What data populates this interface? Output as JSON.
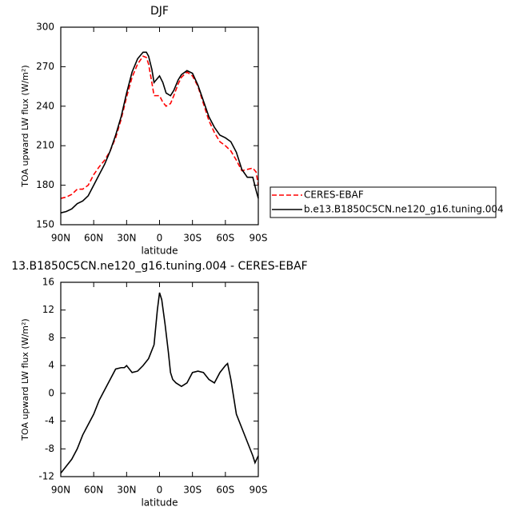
{
  "chart_data": [
    {
      "type": "line",
      "title": "DJF",
      "xlabel": "latitude",
      "ylabel": "TOA upward LW flux (W/m²)",
      "x": [
        90,
        85,
        80,
        75,
        70,
        65,
        60,
        55,
        50,
        45,
        40,
        35,
        30,
        25,
        20,
        15,
        12,
        10,
        7,
        5,
        2,
        0,
        -3,
        -6,
        -10,
        -13,
        -17,
        -20,
        -25,
        -30,
        -35,
        -40,
        -45,
        -50,
        -55,
        -60,
        -65,
        -70,
        -75,
        -80,
        -85,
        -88,
        -90
      ],
      "series": [
        {
          "name": "CERES-EBAF",
          "color": "#ff0000",
          "line_style": "dashed",
          "values": [
            170,
            171,
            173,
            177,
            177,
            180,
            188,
            194,
            199,
            206,
            216,
            230,
            247,
            262,
            272,
            278,
            277,
            272,
            258,
            248,
            248,
            248,
            243,
            240,
            242,
            248,
            257,
            262,
            266,
            263,
            255,
            242,
            229,
            220,
            213,
            210,
            206,
            199,
            191,
            192,
            193,
            190,
            180
          ]
        },
        {
          "name": "b.e13.B1850C5CN.ne120_g16.tuning.004",
          "color": "#000000",
          "line_style": "solid",
          "values": [
            159,
            160,
            162,
            166,
            168,
            172,
            180,
            188,
            196,
            206,
            218,
            232,
            250,
            266,
            276,
            281,
            281,
            278,
            268,
            258,
            261,
            263,
            258,
            250,
            248,
            252,
            260,
            264,
            267,
            265,
            256,
            244,
            232,
            224,
            218,
            216,
            213,
            205,
            192,
            186,
            186,
            176,
            170
          ]
        }
      ],
      "xlim": [
        90,
        -90
      ],
      "xticks": [
        {
          "value": 90,
          "label": "90N"
        },
        {
          "value": 60,
          "label": "60N"
        },
        {
          "value": 30,
          "label": "30N"
        },
        0,
        {
          "value": -30,
          "label": "30S"
        },
        {
          "value": -60,
          "label": "60S"
        },
        {
          "value": -90,
          "label": "90S"
        }
      ],
      "ylim": [
        150,
        300
      ],
      "yticks": [
        150,
        180,
        210,
        240,
        270,
        300
      ],
      "legend": "right"
    },
    {
      "type": "line",
      "title": "13.B1850C5CN.ne120_g16.tuning.004 - CERES-EBAF",
      "xlabel": "latitude",
      "ylabel": "TOA upward LW flux (W/m²)",
      "x": [
        90,
        85,
        80,
        75,
        70,
        65,
        60,
        55,
        50,
        45,
        40,
        35,
        32,
        30,
        25,
        20,
        15,
        10,
        5,
        2,
        0,
        -2,
        -5,
        -8,
        -10,
        -12,
        -15,
        -20,
        -25,
        -30,
        -35,
        -40,
        -45,
        -50,
        -55,
        -60,
        -62,
        -65,
        -70,
        -75,
        -80,
        -85,
        -87,
        -90
      ],
      "series": [
        {
          "color": "#000000",
          "line_style": "solid",
          "values": [
            -11.5,
            -10.5,
            -9.5,
            -8,
            -6,
            -4.5,
            -3,
            -1,
            0.5,
            2,
            3.5,
            3.7,
            3.7,
            4,
            3,
            3.2,
            4,
            5,
            7,
            12,
            14.5,
            13.5,
            10,
            6,
            3,
            2,
            1.5,
            1,
            1.5,
            3,
            3.2,
            3,
            2,
            1.5,
            3,
            4,
            4.3,
            2,
            -3,
            -5,
            -7,
            -9,
            -10,
            -9
          ]
        }
      ],
      "xlim": [
        90,
        -90
      ],
      "xticks": [
        {
          "value": 90,
          "label": "90N"
        },
        {
          "value": 60,
          "label": "60N"
        },
        {
          "value": 30,
          "label": "30N"
        },
        0,
        {
          "value": -30,
          "label": "30S"
        },
        {
          "value": -60,
          "label": "60S"
        },
        {
          "value": -90,
          "label": "90S"
        }
      ],
      "ylim": [
        -12,
        16
      ],
      "yticks": [
        -12,
        -8,
        -4,
        0,
        4,
        8,
        12,
        16
      ]
    }
  ]
}
